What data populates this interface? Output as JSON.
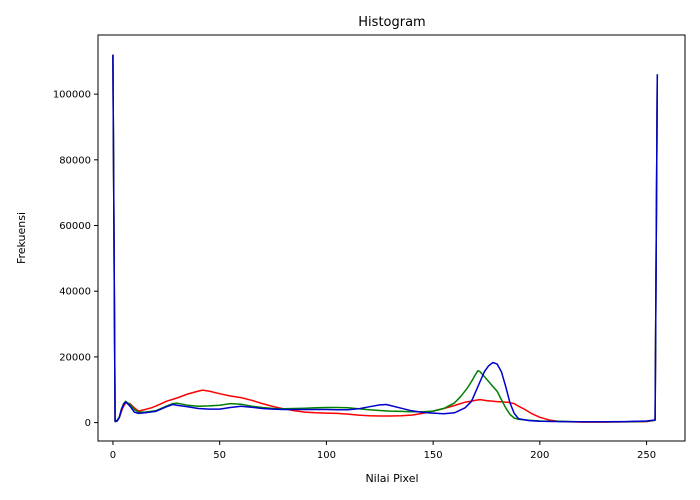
{
  "chart_data": {
    "type": "line",
    "title": "Histogram",
    "xlabel": "Nilai Pixel",
    "ylabel": "Frekuensi",
    "xlim": [
      -7,
      268
    ],
    "ylim": [
      -5600,
      118000
    ],
    "xticks": [
      0,
      50,
      100,
      150,
      200,
      250
    ],
    "yticks": [
      0,
      20000,
      40000,
      60000,
      80000,
      100000
    ],
    "grid": false,
    "series": [
      {
        "color": "#ff0000",
        "points": [
          [
            0,
            112000
          ],
          [
            1,
            500
          ],
          [
            2,
            600
          ],
          [
            3,
            1500
          ],
          [
            4,
            3500
          ],
          [
            5,
            5000
          ],
          [
            6,
            6000
          ],
          [
            8,
            5800
          ],
          [
            10,
            4500
          ],
          [
            12,
            3500
          ],
          [
            15,
            4000
          ],
          [
            18,
            4500
          ],
          [
            20,
            5000
          ],
          [
            25,
            6500
          ],
          [
            30,
            7500
          ],
          [
            35,
            8700
          ],
          [
            40,
            9600
          ],
          [
            42,
            9900
          ],
          [
            45,
            9600
          ],
          [
            50,
            8800
          ],
          [
            55,
            8100
          ],
          [
            60,
            7600
          ],
          [
            65,
            6800
          ],
          [
            70,
            5800
          ],
          [
            75,
            4900
          ],
          [
            80,
            4200
          ],
          [
            85,
            3600
          ],
          [
            90,
            3200
          ],
          [
            95,
            3000
          ],
          [
            100,
            2900
          ],
          [
            105,
            2800
          ],
          [
            110,
            2600
          ],
          [
            115,
            2300
          ],
          [
            120,
            2100
          ],
          [
            125,
            2000
          ],
          [
            130,
            2000
          ],
          [
            135,
            2100
          ],
          [
            140,
            2300
          ],
          [
            145,
            2800
          ],
          [
            150,
            3500
          ],
          [
            155,
            4300
          ],
          [
            160,
            5200
          ],
          [
            165,
            6200
          ],
          [
            170,
            6800
          ],
          [
            172,
            7000
          ],
          [
            175,
            6700
          ],
          [
            180,
            6400
          ],
          [
            185,
            6200
          ],
          [
            188,
            5800
          ],
          [
            190,
            5000
          ],
          [
            193,
            4000
          ],
          [
            196,
            2800
          ],
          [
            200,
            1600
          ],
          [
            205,
            700
          ],
          [
            210,
            300
          ],
          [
            215,
            200
          ],
          [
            220,
            150
          ],
          [
            230,
            150
          ],
          [
            240,
            200
          ],
          [
            250,
            300
          ],
          [
            254,
            700
          ],
          [
            255,
            106000
          ]
        ]
      },
      {
        "color": "#008000",
        "points": [
          [
            0,
            112000
          ],
          [
            1,
            500
          ],
          [
            2,
            700
          ],
          [
            3,
            1800
          ],
          [
            4,
            4200
          ],
          [
            5,
            5800
          ],
          [
            6,
            6500
          ],
          [
            8,
            5500
          ],
          [
            10,
            4000
          ],
          [
            12,
            3200
          ],
          [
            15,
            3200
          ],
          [
            20,
            3600
          ],
          [
            25,
            5000
          ],
          [
            28,
            5800
          ],
          [
            30,
            5900
          ],
          [
            35,
            5300
          ],
          [
            40,
            5000
          ],
          [
            45,
            5100
          ],
          [
            50,
            5300
          ],
          [
            55,
            5800
          ],
          [
            60,
            5600
          ],
          [
            65,
            5000
          ],
          [
            70,
            4600
          ],
          [
            75,
            4300
          ],
          [
            80,
            4200
          ],
          [
            85,
            4300
          ],
          [
            90,
            4400
          ],
          [
            95,
            4500
          ],
          [
            100,
            4600
          ],
          [
            105,
            4600
          ],
          [
            110,
            4500
          ],
          [
            115,
            4200
          ],
          [
            120,
            3900
          ],
          [
            125,
            3700
          ],
          [
            130,
            3500
          ],
          [
            135,
            3400
          ],
          [
            140,
            3300
          ],
          [
            145,
            3300
          ],
          [
            150,
            3500
          ],
          [
            155,
            4300
          ],
          [
            160,
            6000
          ],
          [
            163,
            8000
          ],
          [
            166,
            10500
          ],
          [
            168,
            12500
          ],
          [
            170,
            14800
          ],
          [
            171,
            15800
          ],
          [
            172,
            15500
          ],
          [
            174,
            14000
          ],
          [
            176,
            12500
          ],
          [
            178,
            11000
          ],
          [
            180,
            9500
          ],
          [
            182,
            7000
          ],
          [
            184,
            4500
          ],
          [
            186,
            2500
          ],
          [
            188,
            1400
          ],
          [
            190,
            1000
          ],
          [
            195,
            700
          ],
          [
            200,
            500
          ],
          [
            205,
            400
          ],
          [
            210,
            400
          ],
          [
            215,
            300
          ],
          [
            220,
            200
          ],
          [
            230,
            200
          ],
          [
            240,
            250
          ],
          [
            250,
            400
          ],
          [
            254,
            700
          ],
          [
            255,
            106000
          ]
        ]
      },
      {
        "color": "#0000cc",
        "points": [
          [
            0,
            112000
          ],
          [
            1,
            300
          ],
          [
            2,
            500
          ],
          [
            3,
            1500
          ],
          [
            4,
            4000
          ],
          [
            5,
            5500
          ],
          [
            6,
            6300
          ],
          [
            8,
            5000
          ],
          [
            10,
            3200
          ],
          [
            12,
            2800
          ],
          [
            15,
            3000
          ],
          [
            20,
            3400
          ],
          [
            25,
            4800
          ],
          [
            28,
            5500
          ],
          [
            30,
            5300
          ],
          [
            35,
            4800
          ],
          [
            40,
            4300
          ],
          [
            45,
            4100
          ],
          [
            50,
            4100
          ],
          [
            55,
            4600
          ],
          [
            60,
            5000
          ],
          [
            65,
            4700
          ],
          [
            70,
            4300
          ],
          [
            75,
            4100
          ],
          [
            80,
            4000
          ],
          [
            85,
            4000
          ],
          [
            90,
            4000
          ],
          [
            95,
            4000
          ],
          [
            100,
            4000
          ],
          [
            105,
            3900
          ],
          [
            110,
            3900
          ],
          [
            115,
            4200
          ],
          [
            120,
            4800
          ],
          [
            125,
            5400
          ],
          [
            128,
            5500
          ],
          [
            130,
            5200
          ],
          [
            135,
            4400
          ],
          [
            140,
            3600
          ],
          [
            145,
            3100
          ],
          [
            150,
            2900
          ],
          [
            155,
            2700
          ],
          [
            160,
            3000
          ],
          [
            165,
            4500
          ],
          [
            168,
            6500
          ],
          [
            170,
            9500
          ],
          [
            172,
            12500
          ],
          [
            174,
            15500
          ],
          [
            176,
            17300
          ],
          [
            178,
            18300
          ],
          [
            180,
            17800
          ],
          [
            182,
            15500
          ],
          [
            184,
            11000
          ],
          [
            186,
            6000
          ],
          [
            188,
            2800
          ],
          [
            190,
            1200
          ],
          [
            195,
            600
          ],
          [
            200,
            400
          ],
          [
            210,
            300
          ],
          [
            220,
            250
          ],
          [
            230,
            250
          ],
          [
            240,
            300
          ],
          [
            250,
            500
          ],
          [
            254,
            800
          ],
          [
            255,
            106000
          ]
        ]
      }
    ]
  }
}
